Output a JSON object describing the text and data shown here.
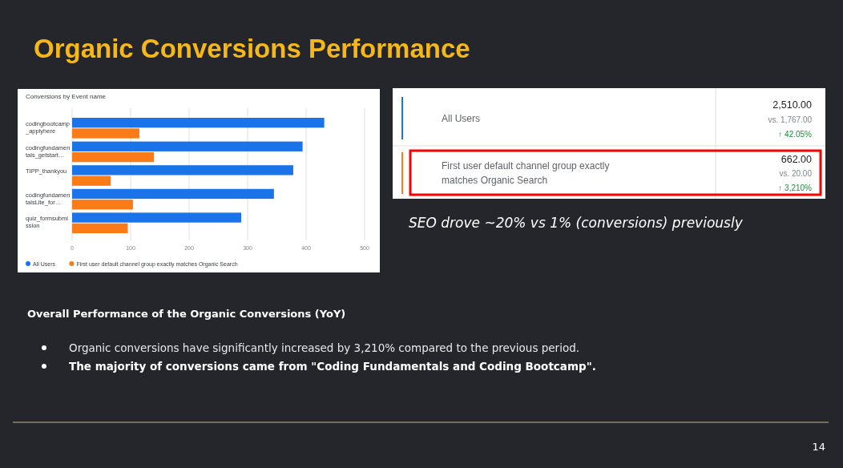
{
  "chart_data": {
    "type": "bar",
    "orientation": "horizontal",
    "title": "Organic Conversions Performance",
    "subtitle": "Conversions by Event name",
    "categories": [
      "codingbootcamp_applyhere",
      "codingfundamentals_getstart…",
      "TIPP_thankyou",
      "codingfundamentalsLite_for…",
      "quiz_formsubmission"
    ],
    "series": [
      {
        "name": "All Users",
        "color": "#1a73e8",
        "values": [
          431,
          394,
          378,
          345,
          289
        ]
      },
      {
        "name": "First user default channel group exactly matches Organic Search",
        "color": "#fa7b17",
        "values": [
          115,
          140,
          66,
          104,
          95
        ]
      }
    ],
    "xlim": [
      0,
      500
    ],
    "xticks": [
      0,
      100,
      200,
      300,
      400,
      500
    ],
    "grid": "x",
    "legend": "bottom",
    "annotations": [
      "All Users",
      "2,510.00",
      "vs. 1,767.00",
      "↑ 42.05%",
      "First user default channel group exactly matches Organic Search",
      "662.00",
      "vs. 20.00",
      "↑ 3,210%",
      "SEO drove ~20% vs 1% (conversions) previously",
      "Overall Performance of the Organic Conversions (YoY)",
      "Organic conversions have significantly increased by 3,210% compared to the previous period.",
      "The majority of conversions came from \"Coding Fundamentals and Coding Bootcamp\".",
      "14"
    ]
  }
}
